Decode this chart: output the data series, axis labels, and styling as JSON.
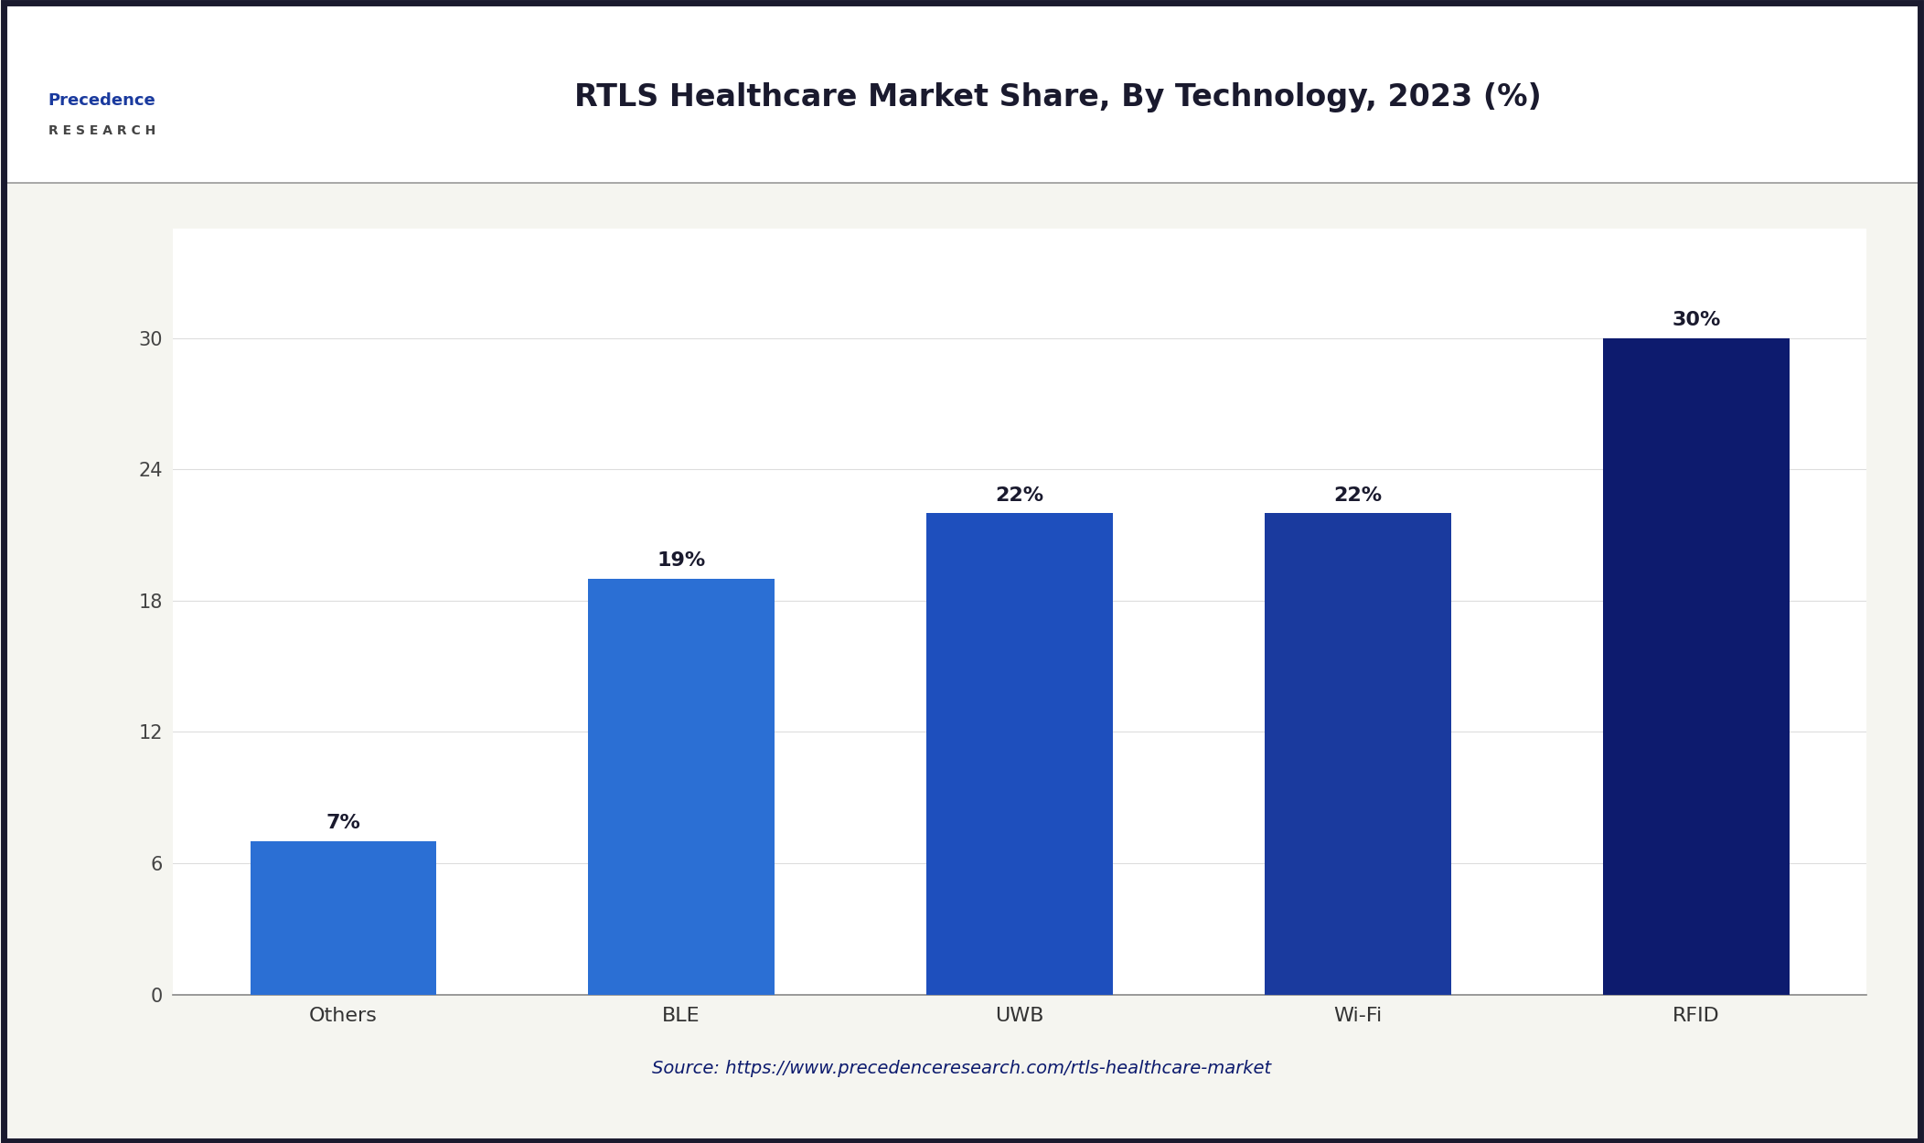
{
  "categories": [
    "Others",
    "BLE",
    "UWB",
    "Wi-Fi",
    "RFID"
  ],
  "values": [
    7,
    19,
    22,
    22,
    30
  ],
  "bar_colors": [
    "#2B6FD4",
    "#2B6FD4",
    "#1E4FBD",
    "#1A3A9E",
    "#0D1B6E"
  ],
  "bar_labels": [
    "7%",
    "19%",
    "22%",
    "22%",
    "30%"
  ],
  "title": "RTLS Healthcare Market Share, By Technology, 2023 (%)",
  "title_fontsize": 24,
  "title_color": "#1a1a2e",
  "yticks": [
    0,
    6,
    12,
    18,
    24,
    30
  ],
  "ylim": [
    0,
    35
  ],
  "source_text": "Source: https://www.precedenceresearch.com/rtls-healthcare-market",
  "source_color": "#0D1B6E",
  "source_fontsize": 14,
  "outer_bg_color": "#F5F5F0",
  "plot_bg_color": "#FFFFFF",
  "border_color": "#1a1a2e",
  "label_fontsize": 16,
  "tick_fontsize": 15,
  "xtick_fontsize": 16,
  "bar_width": 0.55
}
